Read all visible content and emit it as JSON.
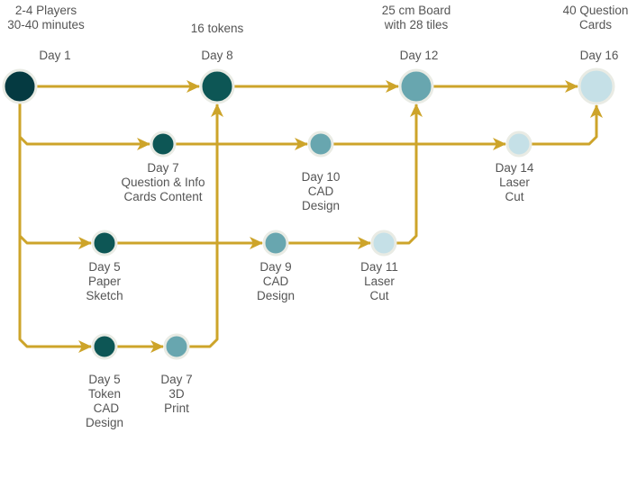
{
  "colors": {
    "arrow": "#CDA42A",
    "node_stroke": "#E9EBE4",
    "text": "#555555",
    "shade_darkest": "#053A41",
    "shade_dark": "#0D5655",
    "shade_mid": "#68A6AF",
    "shade_light": "#C5E0E7"
  },
  "milestones": [
    {
      "id": "day1",
      "label": "Day 1",
      "note": "2-4 Players\n30-40 minutes",
      "shade": "shade_darkest"
    },
    {
      "id": "day8",
      "label": "Day 8",
      "note": "16 tokens",
      "shade": "shade_dark"
    },
    {
      "id": "day12",
      "label": "Day 12",
      "note": "25 cm Board\nwith 28 tiles",
      "shade": "shade_mid"
    },
    {
      "id": "day16",
      "label": "Day 16",
      "note": "40 Question\nCards",
      "shade": "shade_light"
    }
  ],
  "tasks": [
    {
      "id": "t_d7_cards",
      "label": "Day 7\nQuestion & Info\nCards Content",
      "shade": "shade_dark"
    },
    {
      "id": "t_d10_cad",
      "label": "Day 10\nCAD\nDesign",
      "shade": "shade_mid"
    },
    {
      "id": "t_d14_laser",
      "label": "Day 14\nLaser\nCut",
      "shade": "shade_light"
    },
    {
      "id": "t_d5_sketch",
      "label": "Day 5\nPaper\nSketch",
      "shade": "shade_dark"
    },
    {
      "id": "t_d9_cad",
      "label": "Day 9\nCAD\nDesign",
      "shade": "shade_mid"
    },
    {
      "id": "t_d11_laser",
      "label": "Day 11\nLaser\nCut",
      "shade": "shade_light"
    },
    {
      "id": "t_d5_token",
      "label": "Day 5\nToken\n CAD\nDesign",
      "shade": "shade_dark"
    },
    {
      "id": "t_d7_print",
      "label": "Day 7\n3D\nPrint",
      "shade": "shade_mid"
    }
  ],
  "edges": [
    {
      "from": "day1",
      "to": "day8"
    },
    {
      "from": "day8",
      "to": "day12"
    },
    {
      "from": "day12",
      "to": "day16"
    },
    {
      "from": "day1",
      "to": "t_d7_cards"
    },
    {
      "from": "t_d7_cards",
      "to": "t_d10_cad"
    },
    {
      "from": "t_d10_cad",
      "to": "t_d14_laser"
    },
    {
      "from": "t_d14_laser",
      "to": "day16"
    },
    {
      "from": "day1",
      "to": "t_d5_sketch"
    },
    {
      "from": "t_d5_sketch",
      "to": "t_d9_cad"
    },
    {
      "from": "t_d9_cad",
      "to": "t_d11_laser"
    },
    {
      "from": "t_d11_laser",
      "to": "day12"
    },
    {
      "from": "day1",
      "to": "t_d5_token"
    },
    {
      "from": "t_d5_token",
      "to": "t_d7_print"
    },
    {
      "from": "t_d7_print",
      "to": "day8"
    }
  ]
}
